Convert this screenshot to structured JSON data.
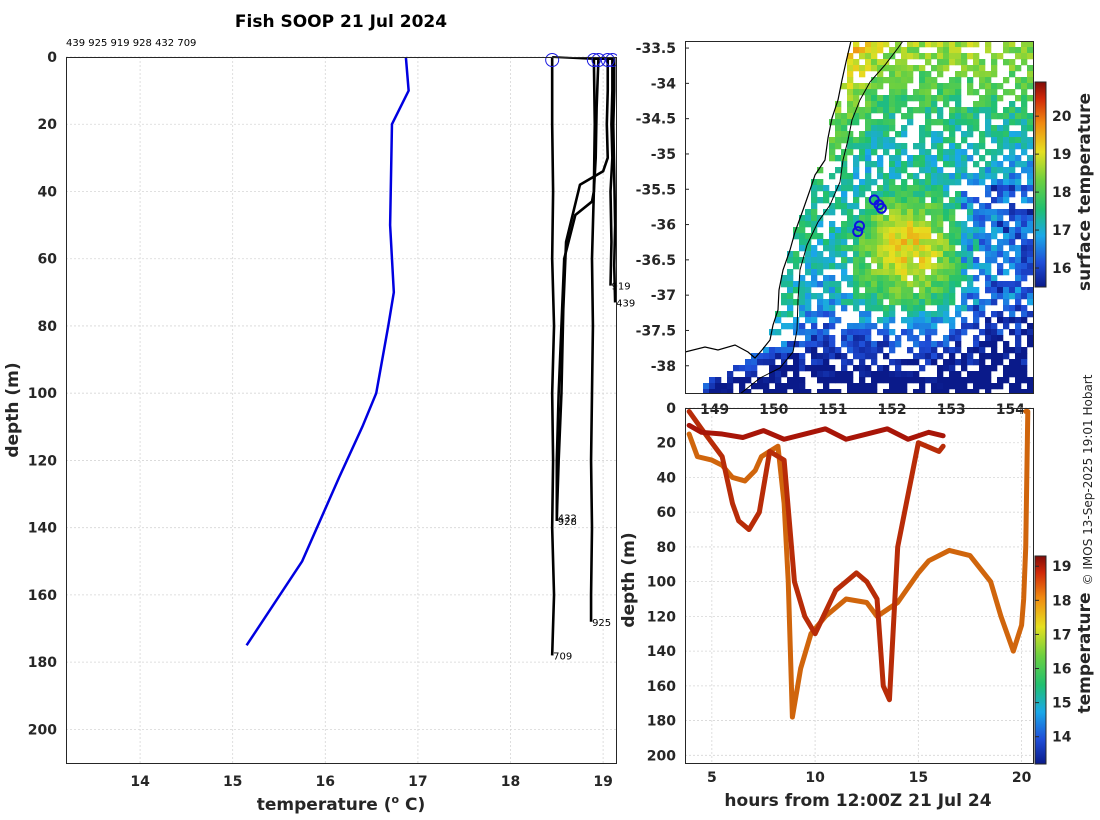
{
  "title": "Fish SOOP 21 Jul 2024",
  "id_header": "439 925 919 928 432 709",
  "copyright": "© IMOS 13-Sep-2025 19:01 Hobart",
  "chart_data": [
    {
      "name": "profile",
      "type": "line",
      "xlabel": "temperature (",
      "xlabel_sup": "o",
      "xlabel_tail": " C)",
      "ylabel": "depth (m)",
      "xlim": [
        13.2,
        19.15
      ],
      "ylim": [
        210,
        0
      ],
      "xticks": [
        "14",
        "15",
        "16",
        "17",
        "18",
        "19"
      ],
      "yticks": [
        "0",
        "20",
        "40",
        "60",
        "80",
        "100",
        "120",
        "140",
        "160",
        "180",
        "200"
      ],
      "climatology": {
        "color": "#0000e0",
        "temp": [
          16.87,
          16.9,
          16.72,
          16.7,
          16.72,
          16.74,
          16.68,
          16.55,
          16.4,
          16.15,
          15.75,
          15.15
        ],
        "depth": [
          0,
          10,
          20,
          50,
          60,
          70,
          80,
          100,
          110,
          125,
          150,
          175
        ]
      },
      "profiles": [
        {
          "label": "709",
          "temp": [
            18.45,
            18.45,
            18.46,
            18.45,
            18.47,
            18.45,
            18.46,
            18.45,
            18.47,
            18.45
          ],
          "depth": [
            0,
            20,
            40,
            60,
            80,
            100,
            120,
            140,
            160,
            178
          ]
        },
        {
          "label": "925",
          "temp": [
            18.9,
            18.91,
            18.9,
            18.88,
            18.89,
            18.88,
            18.87,
            18.88,
            18.87,
            18.87
          ],
          "depth": [
            0,
            20,
            40,
            60,
            80,
            100,
            120,
            140,
            160,
            168
          ]
        },
        {
          "label": "928",
          "temp": [
            18.95,
            18.93,
            18.92,
            18.9,
            18.88,
            18.7,
            18.58,
            18.55,
            18.52,
            18.5,
            18.5
          ],
          "depth": [
            0,
            15,
            30,
            40,
            43,
            47,
            60,
            80,
            100,
            120,
            138
          ]
        },
        {
          "label": "432",
          "temp": [
            19.05,
            19.05,
            19.04,
            19.05,
            19.0,
            18.75,
            18.6,
            18.57,
            18.55,
            18.52,
            18.5
          ],
          "depth": [
            0,
            10,
            20,
            30,
            34,
            38,
            55,
            75,
            100,
            120,
            137
          ]
        },
        {
          "label": "919",
          "temp": [
            19.1,
            19.1,
            19.09,
            19.1,
            19.08,
            19.09,
            19.08
          ],
          "depth": [
            0,
            10,
            20,
            30,
            40,
            55,
            68
          ]
        },
        {
          "label": "439",
          "temp": [
            19.12,
            19.12,
            19.11,
            19.12,
            19.13,
            19.12,
            19.13
          ],
          "depth": [
            0,
            10,
            20,
            35,
            50,
            62,
            73
          ]
        }
      ],
      "surface_markers": [
        18.45,
        18.9,
        18.95,
        19.05,
        19.1
      ]
    },
    {
      "name": "sst_map",
      "type": "heatmap",
      "colorbar_label": "surface temperature",
      "colorbar_ticks": [
        "16",
        "17",
        "18",
        "19",
        "20"
      ],
      "clim": [
        15.5,
        20.9
      ],
      "xlim": [
        148.5,
        154.4
      ],
      "ylim": [
        -38.4,
        -33.4
      ],
      "xticks": [
        "149",
        "150",
        "151",
        "152",
        "153",
        "154"
      ],
      "yticks": [
        "-33.5",
        "-34",
        "-34.5",
        "-35",
        "-35.5",
        "-36",
        "-36.5",
        "-37",
        "-37.5",
        "-38"
      ],
      "eddy_center": [
        152.2,
        -36.3
      ],
      "drop_positions": [
        {
          "lon": 151.7,
          "lat": -35.65
        },
        {
          "lon": 151.78,
          "lat": -35.72
        },
        {
          "lon": 151.82,
          "lat": -35.77
        },
        {
          "lon": 151.45,
          "lat": -36.02
        },
        {
          "lon": 151.42,
          "lat": -36.1
        }
      ]
    },
    {
      "name": "time_depth",
      "type": "line",
      "xlabel": "hours from 12:00Z 21 Jul 24",
      "ylabel": "depth (m)",
      "colorbar_label": "temperature",
      "colorbar_ticks": [
        "14",
        "15",
        "16",
        "17",
        "18",
        "19"
      ],
      "clim": [
        13.2,
        19.3
      ],
      "xlim": [
        3.7,
        20.6
      ],
      "ylim": [
        205,
        0
      ],
      "xticks": [
        "5",
        "10",
        "15",
        "20"
      ],
      "yticks": [
        "0",
        "20",
        "40",
        "60",
        "80",
        "100",
        "120",
        "140",
        "160",
        "180",
        "200"
      ],
      "tracks": [
        {
          "color": "#d0650c",
          "hours": [
            3.9,
            4.3,
            5.0,
            5.5,
            6.0,
            6.6,
            7.1,
            7.4,
            7.8,
            8.2,
            8.5,
            8.7,
            8.9,
            9.3,
            9.8,
            10.5,
            11.5,
            12.5,
            13.0,
            14.0,
            15.0,
            15.5,
            16.5,
            17.5,
            18.5,
            19.0,
            19.6,
            20.0,
            20.1,
            20.2,
            20.3,
            20.2
          ],
          "depth": [
            15,
            28,
            30,
            33,
            40,
            42,
            36,
            28,
            25,
            22,
            55,
            100,
            178,
            150,
            130,
            120,
            110,
            112,
            120,
            112,
            95,
            88,
            82,
            85,
            100,
            120,
            140,
            125,
            110,
            80,
            2,
            2
          ]
        },
        {
          "color": "#b82c08",
          "hours": [
            3.9,
            4.5,
            5.0,
            5.5,
            6.0,
            6.3,
            6.8,
            7.3,
            7.8,
            8.5,
            9.0,
            9.5,
            10.0,
            11.0,
            11.5,
            12.0,
            12.5,
            13.0,
            13.3,
            13.6,
            14.0,
            15.0,
            16.0,
            16.2
          ],
          "depth": [
            2,
            12,
            20,
            28,
            55,
            65,
            70,
            60,
            25,
            30,
            100,
            120,
            130,
            105,
            100,
            95,
            100,
            110,
            160,
            168,
            80,
            20,
            25,
            22
          ]
        },
        {
          "color": "#a81508",
          "hours": [
            3.9,
            4.5,
            5.5,
            6.5,
            7.5,
            8.5,
            9.5,
            10.5,
            11.5,
            12.5,
            13.5,
            14.5,
            15.5,
            16.2
          ],
          "depth": [
            10,
            14,
            15,
            17,
            13,
            18,
            15,
            12,
            18,
            15,
            12,
            18,
            14,
            16
          ]
        }
      ]
    }
  ]
}
